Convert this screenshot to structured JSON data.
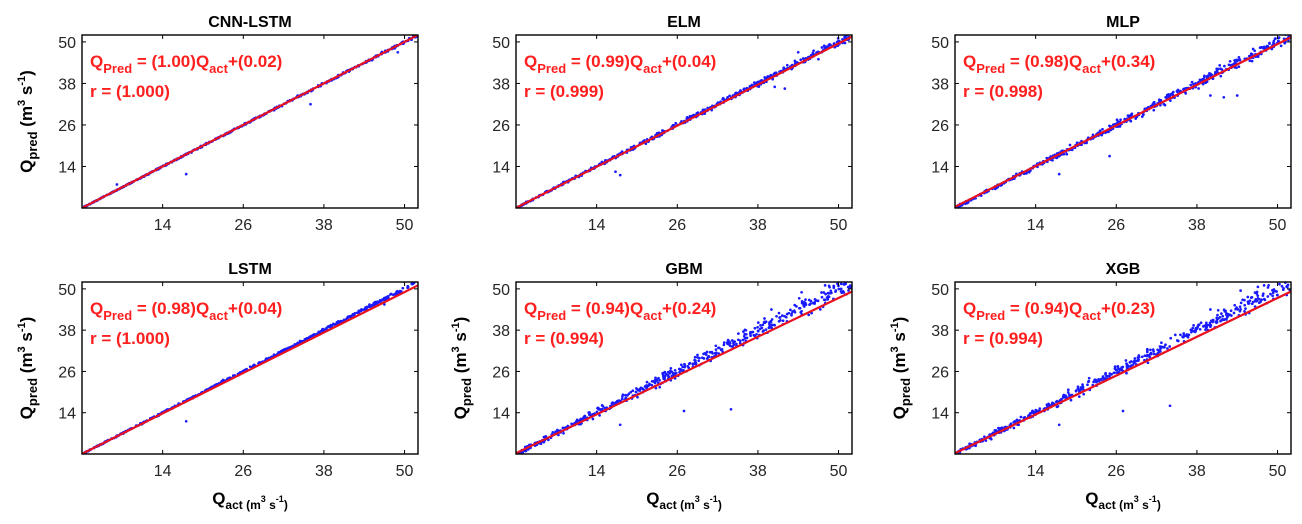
{
  "colors": {
    "points": "#1a1aff",
    "fit_line": "#e8121f",
    "annotation": "#ff1f1f"
  },
  "labels": {
    "xlabel_main": "Q",
    "xlabel_sub": "act (m",
    "xlabel_sup": "3",
    "xlabel_mid": " s",
    "xlabel_sup2": "-1",
    "xlabel_end": ")",
    "ylabel_main": "Q",
    "ylabel_sub": "pred",
    "ylabel_unit": " (m",
    "ylabel_sup": "3",
    "ylabel_mid": " s",
    "ylabel_sup2": "-1",
    "ylabel_end": ")",
    "eq_q": "Q",
    "eq_pred_sub": "Pred",
    "eq_act_sub": "act",
    "eq_r_prefix": "r = "
  },
  "chart_data": [
    {
      "type": "scatter",
      "title": "CNN-LSTM",
      "slope": "(1.00)",
      "intercept": "(0.02)",
      "r": "(1.000)",
      "slope_value": 1.0,
      "intercept_value": 0.02,
      "spread": 0.4,
      "outliers": [
        [
          17.5,
          11.8
        ],
        [
          7.2,
          8.8
        ],
        [
          49.0,
          47.0
        ],
        [
          36.0,
          32.0
        ]
      ],
      "xlim": [
        2,
        52
      ],
      "ylim": [
        2,
        52
      ],
      "xticks": [
        14,
        26,
        38,
        50
      ],
      "yticks": [
        14,
        26,
        38,
        50
      ]
    },
    {
      "type": "scatter",
      "title": "ELM",
      "slope": "(0.99)",
      "intercept": "(0.04)",
      "r": "(0.999)",
      "slope_value": 0.99,
      "intercept_value": 0.04,
      "spread": 0.9,
      "outliers": [
        [
          17.5,
          11.5
        ],
        [
          16.8,
          12.5
        ],
        [
          40.5,
          37.0
        ],
        [
          42.0,
          36.5
        ],
        [
          47.0,
          45.0
        ],
        [
          44.0,
          47.0
        ]
      ],
      "xlim": [
        2,
        52
      ],
      "ylim": [
        2,
        52
      ],
      "xticks": [
        14,
        26,
        38,
        50
      ],
      "yticks": [
        14,
        26,
        38,
        50
      ]
    },
    {
      "type": "scatter",
      "title": "MLP",
      "slope": "(0.98)",
      "intercept": "(0.34)",
      "r": "(0.998)",
      "slope_value": 0.98,
      "intercept_value": 0.34,
      "spread": 1.6,
      "outliers": [
        [
          17.5,
          11.8
        ],
        [
          40.0,
          34.5
        ],
        [
          42.0,
          34.0
        ],
        [
          44.0,
          34.5
        ],
        [
          25.0,
          17.0
        ],
        [
          32.0,
          31.5
        ]
      ],
      "xlim": [
        2,
        52
      ],
      "ylim": [
        2,
        52
      ],
      "xticks": [
        14,
        26,
        38,
        50
      ],
      "yticks": [
        14,
        26,
        38,
        50
      ]
    },
    {
      "type": "scatter",
      "title": "LSTM",
      "slope": "(0.98)",
      "intercept": "(0.04)",
      "r": "(1.000)",
      "slope_value": 0.98,
      "intercept_value": 0.04,
      "spread": 0.5,
      "outliers": [
        [
          17.5,
          11.5
        ],
        [
          23.0,
          23.5
        ],
        [
          47.0,
          45.5
        ]
      ],
      "xlim": [
        2,
        52
      ],
      "ylim": [
        2,
        52
      ],
      "xticks": [
        14,
        26,
        38,
        50
      ],
      "yticks": [
        14,
        26,
        38,
        50
      ]
    },
    {
      "type": "scatter",
      "title": "GBM",
      "slope": "(0.94)",
      "intercept": "(0.24)",
      "r": "(0.994)",
      "slope_value": 0.94,
      "intercept_value": 0.24,
      "spread": 2.6,
      "outliers": [
        [
          17.5,
          10.5
        ],
        [
          27.0,
          14.5
        ],
        [
          34.0,
          15.0
        ],
        [
          48.0,
          51.0
        ],
        [
          44.5,
          49.0
        ],
        [
          40.0,
          44.0
        ]
      ],
      "xlim": [
        2,
        52
      ],
      "ylim": [
        2,
        52
      ],
      "xticks": [
        14,
        26,
        38,
        50
      ],
      "yticks": [
        14,
        26,
        38,
        50
      ]
    },
    {
      "type": "scatter",
      "title": "XGB",
      "slope": "(0.94)",
      "intercept": "(0.23)",
      "r": "(0.994)",
      "slope_value": 0.94,
      "intercept_value": 0.23,
      "spread": 2.6,
      "outliers": [
        [
          17.5,
          10.5
        ],
        [
          27.0,
          14.5
        ],
        [
          34.0,
          16.0
        ],
        [
          48.0,
          51.0
        ],
        [
          44.5,
          49.5
        ],
        [
          40.0,
          44.0
        ]
      ],
      "xlim": [
        2,
        52
      ],
      "ylim": [
        2,
        52
      ],
      "xticks": [
        14,
        26,
        38,
        50
      ],
      "yticks": [
        14,
        26,
        38,
        50
      ]
    }
  ]
}
